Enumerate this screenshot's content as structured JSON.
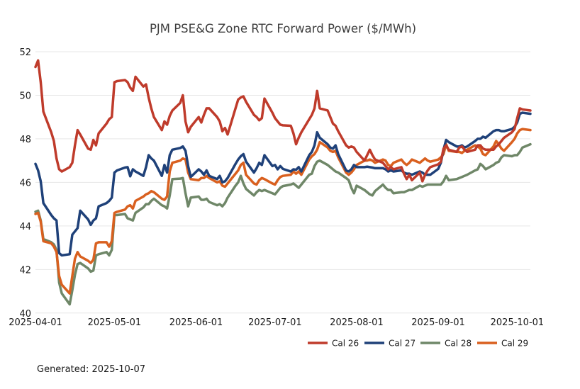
{
  "title": "PJM PSE&G Zone RTC Forward Power ($/MWh)",
  "footer": {
    "generated_label": "Generated: 2025-10-07"
  },
  "chart_data": {
    "type": "line",
    "title": "PJM PSE&G Zone RTC Forward Power ($/MWh)",
    "xlabel": "",
    "ylabel": "",
    "x_dates": [
      "2025-04-01",
      "2025-04-02",
      "2025-04-03",
      "2025-04-04",
      "2025-04-07",
      "2025-04-08",
      "2025-04-09",
      "2025-04-10",
      "2025-04-11",
      "2025-04-14",
      "2025-04-15",
      "2025-04-16",
      "2025-04-17",
      "2025-04-18",
      "2025-04-21",
      "2025-04-22",
      "2025-04-23",
      "2025-04-24",
      "2025-04-25",
      "2025-04-28",
      "2025-04-29",
      "2025-04-30",
      "2025-05-01",
      "2025-05-02",
      "2025-05-05",
      "2025-05-06",
      "2025-05-07",
      "2025-05-08",
      "2025-05-09",
      "2025-05-12",
      "2025-05-13",
      "2025-05-14",
      "2025-05-15",
      "2025-05-16",
      "2025-05-19",
      "2025-05-20",
      "2025-05-21",
      "2025-05-22",
      "2025-05-23",
      "2025-05-26",
      "2025-05-27",
      "2025-05-28",
      "2025-05-29",
      "2025-05-30",
      "2025-06-02",
      "2025-06-03",
      "2025-06-04",
      "2025-06-05",
      "2025-06-06",
      "2025-06-09",
      "2025-06-10",
      "2025-06-11",
      "2025-06-12",
      "2025-06-13",
      "2025-06-16",
      "2025-06-17",
      "2025-06-18",
      "2025-06-19",
      "2025-06-20",
      "2025-06-23",
      "2025-06-24",
      "2025-06-25",
      "2025-06-26",
      "2025-06-27",
      "2025-06-30",
      "2025-07-01",
      "2025-07-02",
      "2025-07-03",
      "2025-07-04",
      "2025-07-07",
      "2025-07-08",
      "2025-07-09",
      "2025-07-10",
      "2025-07-11",
      "2025-07-14",
      "2025-07-15",
      "2025-07-16",
      "2025-07-17",
      "2025-07-18",
      "2025-07-21",
      "2025-07-22",
      "2025-07-23",
      "2025-07-24",
      "2025-07-25",
      "2025-07-28",
      "2025-07-29",
      "2025-07-30",
      "2025-07-31",
      "2025-08-01",
      "2025-08-04",
      "2025-08-05",
      "2025-08-06",
      "2025-08-07",
      "2025-08-08",
      "2025-08-11",
      "2025-08-12",
      "2025-08-13",
      "2025-08-14",
      "2025-08-15",
      "2025-08-18",
      "2025-08-19",
      "2025-08-20",
      "2025-08-21",
      "2025-08-22",
      "2025-08-25",
      "2025-08-26",
      "2025-08-27",
      "2025-08-28",
      "2025-08-29",
      "2025-09-01",
      "2025-09-02",
      "2025-09-03",
      "2025-09-04",
      "2025-09-05",
      "2025-09-08",
      "2025-09-09",
      "2025-09-10",
      "2025-09-11",
      "2025-09-12",
      "2025-09-15",
      "2025-09-16",
      "2025-09-17",
      "2025-09-18",
      "2025-09-19",
      "2025-09-22",
      "2025-09-23",
      "2025-09-24",
      "2025-09-25",
      "2025-09-26",
      "2025-09-29",
      "2025-09-30",
      "2025-10-01",
      "2025-10-02",
      "2025-10-03",
      "2025-10-06"
    ],
    "series": [
      {
        "name": "Cal 26",
        "color": "#bf3b2b",
        "values": [
          51.3,
          51.6,
          50.6,
          49.25,
          48.3,
          47.9,
          47.1,
          46.6,
          46.5,
          46.7,
          46.9,
          47.7,
          48.4,
          48.2,
          47.55,
          47.5,
          47.95,
          47.7,
          48.25,
          48.7,
          48.9,
          49.0,
          50.6,
          50.65,
          50.7,
          50.6,
          50.35,
          50.2,
          50.85,
          50.4,
          50.5,
          49.9,
          49.4,
          49.0,
          48.4,
          48.8,
          48.65,
          49.05,
          49.3,
          49.65,
          50.0,
          48.8,
          48.3,
          48.55,
          49.0,
          48.75,
          49.1,
          49.4,
          49.4,
          49.0,
          48.8,
          48.35,
          48.5,
          48.2,
          49.4,
          49.8,
          49.9,
          49.95,
          49.7,
          49.1,
          49.0,
          48.85,
          48.95,
          49.85,
          49.2,
          48.95,
          48.8,
          48.65,
          48.62,
          48.6,
          48.25,
          47.75,
          48.05,
          48.3,
          48.9,
          49.1,
          49.4,
          50.2,
          49.4,
          49.3,
          49.0,
          48.7,
          48.6,
          48.35,
          47.7,
          47.6,
          47.65,
          47.6,
          47.4,
          47.0,
          47.25,
          47.5,
          47.25,
          47.05,
          46.9,
          46.75,
          46.6,
          46.7,
          46.6,
          46.7,
          46.4,
          46.15,
          46.35,
          46.1,
          46.45,
          46.05,
          46.35,
          46.55,
          46.7,
          46.83,
          46.95,
          47.55,
          47.7,
          47.5,
          47.4,
          47.6,
          47.65,
          47.5,
          47.4,
          47.5,
          47.7,
          47.7,
          47.55,
          47.5,
          47.5,
          47.65,
          47.75,
          47.9,
          48.05,
          48.3,
          48.45,
          48.95,
          49.4,
          49.35,
          49.3
        ]
      },
      {
        "name": "Cal 27",
        "color": "#1f4179",
        "values": [
          46.85,
          46.55,
          46.05,
          45.05,
          44.5,
          44.35,
          44.25,
          42.75,
          42.65,
          42.7,
          43.6,
          43.75,
          43.9,
          44.7,
          44.3,
          44.05,
          44.25,
          44.35,
          44.9,
          45.05,
          45.15,
          45.3,
          46.45,
          46.55,
          46.68,
          46.7,
          46.28,
          46.6,
          46.5,
          46.3,
          46.7,
          47.25,
          47.1,
          47.0,
          46.3,
          46.8,
          46.45,
          47.25,
          47.5,
          47.58,
          47.65,
          47.45,
          46.75,
          46.25,
          46.6,
          46.5,
          46.35,
          46.55,
          46.3,
          46.15,
          46.3,
          46.0,
          46.05,
          46.2,
          46.85,
          47.05,
          47.2,
          47.3,
          46.95,
          46.45,
          46.65,
          46.9,
          46.8,
          47.25,
          46.75,
          46.8,
          46.6,
          46.75,
          46.62,
          46.5,
          46.6,
          46.58,
          46.7,
          46.5,
          47.25,
          47.4,
          47.7,
          48.3,
          48.05,
          47.75,
          47.6,
          47.55,
          47.7,
          47.3,
          46.55,
          46.5,
          46.6,
          46.8,
          46.7,
          46.7,
          46.72,
          46.7,
          46.68,
          46.65,
          46.65,
          46.6,
          46.5,
          46.55,
          46.5,
          46.55,
          46.45,
          46.4,
          46.4,
          46.35,
          46.5,
          46.45,
          46.35,
          46.35,
          46.35,
          46.62,
          46.9,
          47.5,
          47.95,
          47.85,
          47.65,
          47.65,
          47.7,
          47.6,
          47.65,
          47.9,
          48.0,
          48.0,
          48.1,
          48.05,
          48.35,
          48.4,
          48.4,
          48.35,
          48.35,
          48.45,
          48.55,
          48.75,
          49.15,
          49.2,
          49.15
        ]
      },
      {
        "name": "Cal 28",
        "color": "#6f8768",
        "values": [
          44.65,
          44.7,
          44.25,
          43.4,
          43.25,
          43.15,
          42.9,
          41.4,
          40.9,
          40.4,
          41.05,
          41.75,
          42.25,
          42.3,
          42.05,
          41.9,
          41.95,
          42.65,
          42.7,
          42.8,
          42.65,
          42.9,
          44.5,
          44.5,
          44.55,
          44.35,
          44.3,
          44.25,
          44.6,
          44.85,
          45.0,
          45.0,
          45.15,
          45.25,
          44.95,
          44.9,
          44.8,
          45.4,
          46.15,
          46.17,
          46.2,
          45.5,
          44.9,
          45.3,
          45.35,
          45.2,
          45.2,
          45.25,
          45.1,
          44.95,
          45.0,
          44.9,
          45.05,
          45.3,
          45.85,
          46.0,
          46.3,
          45.95,
          45.7,
          45.4,
          45.55,
          45.65,
          45.6,
          45.65,
          45.5,
          45.45,
          45.6,
          45.75,
          45.83,
          45.9,
          45.95,
          45.85,
          45.75,
          45.9,
          46.35,
          46.4,
          46.75,
          46.95,
          47.0,
          46.8,
          46.7,
          46.6,
          46.5,
          46.45,
          46.2,
          46.1,
          45.75,
          45.5,
          45.85,
          45.65,
          45.55,
          45.45,
          45.4,
          45.6,
          45.9,
          45.75,
          45.65,
          45.65,
          45.5,
          45.55,
          45.55,
          45.6,
          45.65,
          45.65,
          45.85,
          45.8,
          45.85,
          45.9,
          45.9,
          45.9,
          45.9,
          46.05,
          46.3,
          46.1,
          46.15,
          46.2,
          46.25,
          46.3,
          46.35,
          46.55,
          46.6,
          46.85,
          46.75,
          46.6,
          46.8,
          46.9,
          46.95,
          47.15,
          47.25,
          47.2,
          47.25,
          47.25,
          47.4,
          47.6,
          47.75
        ]
      },
      {
        "name": "Cal 29",
        "color": "#d9601f",
        "values": [
          44.55,
          44.6,
          44.2,
          43.3,
          43.2,
          43.05,
          42.8,
          41.7,
          41.3,
          40.9,
          41.7,
          42.5,
          42.8,
          42.6,
          42.4,
          42.3,
          42.45,
          43.2,
          43.25,
          43.25,
          43.05,
          43.3,
          44.6,
          44.65,
          44.75,
          44.9,
          44.95,
          44.8,
          45.15,
          45.35,
          45.45,
          45.5,
          45.6,
          45.55,
          45.25,
          45.2,
          45.35,
          46.5,
          46.9,
          47.0,
          47.1,
          47.05,
          46.45,
          46.15,
          46.1,
          46.2,
          46.2,
          46.3,
          46.2,
          46.0,
          46.05,
          45.85,
          45.8,
          45.95,
          46.4,
          46.55,
          46.8,
          46.9,
          46.35,
          45.95,
          45.9,
          46.1,
          46.2,
          46.15,
          45.95,
          45.9,
          46.1,
          46.25,
          46.3,
          46.35,
          46.5,
          46.4,
          46.5,
          46.35,
          47.05,
          47.2,
          47.3,
          47.5,
          47.85,
          47.6,
          47.45,
          47.4,
          47.45,
          47.15,
          46.45,
          46.35,
          46.45,
          46.6,
          46.8,
          47.0,
          47.0,
          47.05,
          47.0,
          46.9,
          47.05,
          47.0,
          46.8,
          46.75,
          46.9,
          47.05,
          46.9,
          46.8,
          46.9,
          47.05,
          46.9,
          47.0,
          47.1,
          47.0,
          46.95,
          47.05,
          47.15,
          47.3,
          47.75,
          47.45,
          47.4,
          47.4,
          47.35,
          47.45,
          47.5,
          47.7,
          47.65,
          47.55,
          47.3,
          47.25,
          47.65,
          47.9,
          47.75,
          47.55,
          47.45,
          47.85,
          48.0,
          48.25,
          48.4,
          48.45,
          48.4
        ]
      }
    ],
    "ylim": [
      40,
      52
    ],
    "yticks": [
      40,
      42,
      44,
      46,
      48,
      50,
      52
    ],
    "xticks": [
      "2025-04-01",
      "2025-05-01",
      "2025-06-01",
      "2025-07-01",
      "2025-08-01",
      "2025-09-01",
      "2025-10-01"
    ],
    "grid": "horizontal",
    "legend_position": "bottom-right",
    "line_width": 3.5
  },
  "legend": {
    "items": [
      {
        "label": "Cal 26",
        "color": "#bf3b2b"
      },
      {
        "label": "Cal 27",
        "color": "#1f4179"
      },
      {
        "label": "Cal 28",
        "color": "#6f8768"
      },
      {
        "label": "Cal 29",
        "color": "#d9601f"
      }
    ]
  },
  "colors": {
    "background": "#ffffff",
    "grid": "#e7e7e7",
    "title_text": "#3d3d3d",
    "tick_text": "#1a1a1a"
  }
}
